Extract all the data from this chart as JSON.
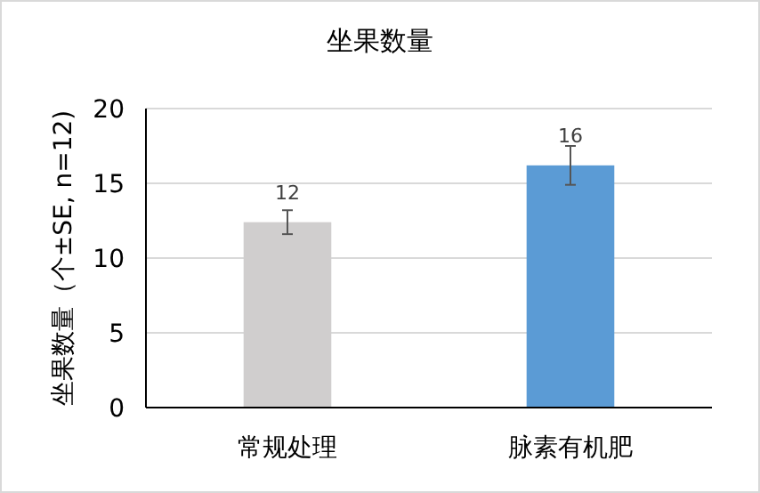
{
  "chart_data": {
    "type": "bar",
    "title": "坐果数量",
    "ylabel": "坐果数量（个±SE, n=12)",
    "categories": [
      "常规处理",
      "脉素有机肥"
    ],
    "values": [
      12.4,
      16.2
    ],
    "colors": [
      "#d0cece",
      "#5b9bd5"
    ],
    "errors": [
      0.8,
      1.3
    ],
    "value_labels": [
      "12",
      "16"
    ],
    "ylim": [
      0,
      20
    ],
    "yticks": [
      0,
      5,
      10,
      15,
      20
    ],
    "grid": "y"
  }
}
